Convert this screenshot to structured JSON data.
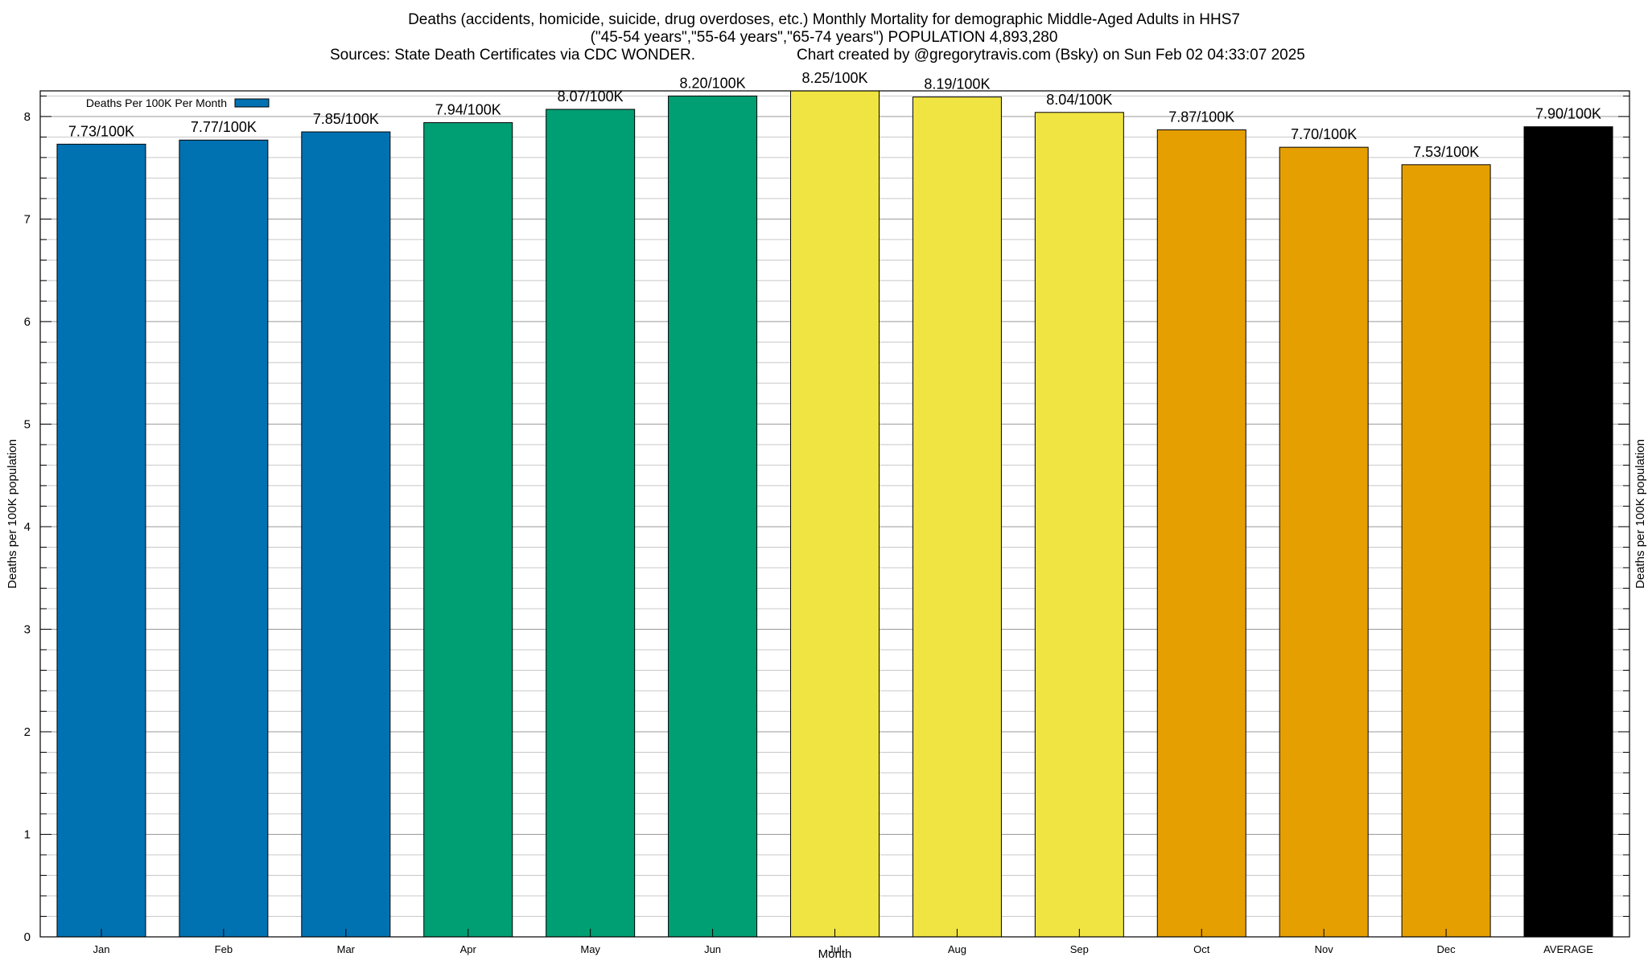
{
  "title": {
    "line1": "Deaths (accidents, homicide, suicide, drug overdoses, etc.) Monthly Mortality for demographic Middle-Aged Adults in HHS7",
    "line2": "(\"45-54 years\",\"55-64 years\",\"65-74 years\") POPULATION 4,893,280",
    "line3_left": "Sources: State Death Certificates via CDC WONDER.",
    "line3_right": "Chart created by @gregorytravis.com (Bsky) on Sun Feb 02 04:33:07 2025"
  },
  "chart_data": {
    "type": "bar",
    "categories": [
      "Jan",
      "Feb",
      "Mar",
      "Apr",
      "May",
      "Jun",
      "Jul",
      "Aug",
      "Sep",
      "Oct",
      "Nov",
      "Dec",
      "AVERAGE"
    ],
    "values": [
      7.73,
      7.77,
      7.85,
      7.94,
      8.07,
      8.2,
      8.25,
      8.19,
      8.04,
      7.87,
      7.7,
      7.53,
      7.9
    ],
    "data_labels": [
      "7.73/100K",
      "7.77/100K",
      "7.85/100K",
      "7.94/100K",
      "8.07/100K",
      "8.20/100K",
      "8.25/100K",
      "8.19/100K",
      "8.04/100K",
      "7.87/100K",
      "7.70/100K",
      "7.53/100K",
      "7.90/100K"
    ],
    "bar_colors": [
      "#0072b2",
      "#0072b2",
      "#0072b2",
      "#009e73",
      "#009e73",
      "#009e73",
      "#f0e442",
      "#f0e442",
      "#f0e442",
      "#e69f00",
      "#e69f00",
      "#e69f00",
      "#000000"
    ],
    "xlabel": "Month",
    "ylabel": "Deaths per 100K population",
    "ylabel_right": "Deaths per 100K population",
    "ylim": [
      0,
      8.25
    ],
    "yticks": [
      0,
      1,
      2,
      3,
      4,
      5,
      6,
      7,
      8
    ],
    "grid": true,
    "legend": {
      "label": "Deaths Per 100K Per Month",
      "color": "#0072b2",
      "position": "top-left"
    }
  }
}
